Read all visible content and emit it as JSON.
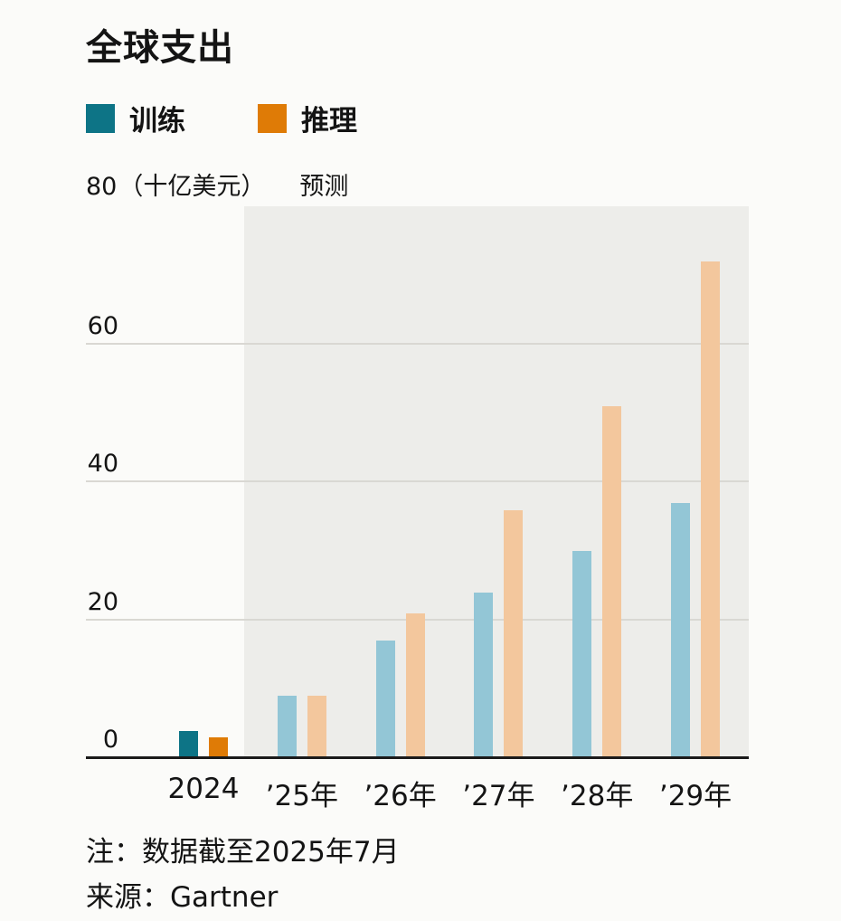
{
  "title": "全球支出",
  "legend": [
    {
      "label": "训练",
      "color": "#0d7486"
    },
    {
      "label": "推理",
      "color": "#df7b06"
    }
  ],
  "axis_note": {
    "top_tick": "80",
    "unit": "（十亿美元）",
    "forecast_label": "预测"
  },
  "chart_data": {
    "type": "bar",
    "title": "全球支出",
    "ylabel": "十亿美元",
    "categories": [
      "2024",
      "’25年",
      "’26年",
      "’27年",
      "’28年",
      "’29年"
    ],
    "series": [
      {
        "name": "训练",
        "values": [
          4,
          9,
          17,
          24,
          30,
          37
        ],
        "color_actual": "#0d7486",
        "color_forecast": "#93c6d6"
      },
      {
        "name": "推理",
        "values": [
          3,
          9,
          21,
          36,
          51,
          72
        ],
        "color_actual": "#df7b06",
        "color_forecast": "#f3c79d"
      }
    ],
    "ylim": [
      0,
      80
    ],
    "yticks": [
      0,
      20,
      40,
      60
    ],
    "forecast_start_index": 1,
    "forecast_region_label": "预测",
    "legend_position": "top-left",
    "grid": "horizontal"
  },
  "notes": {
    "note": "注：数据截至2025年7月",
    "source": "来源：Gartner"
  }
}
